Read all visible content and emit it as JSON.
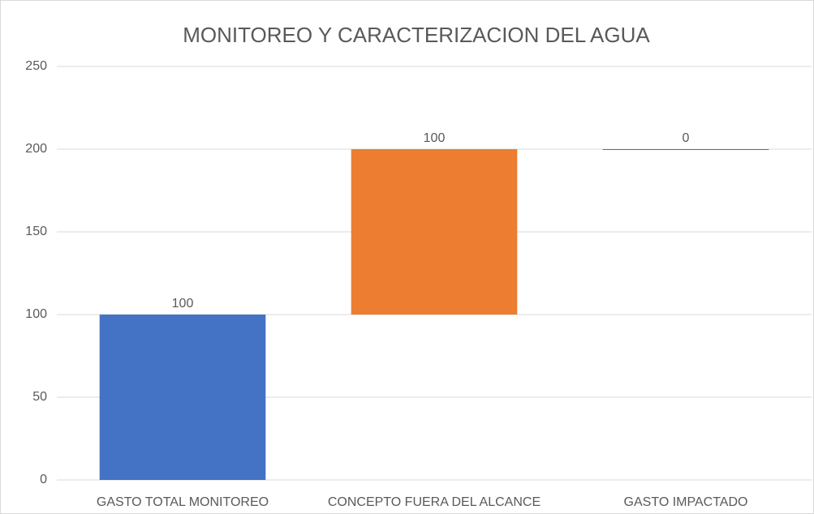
{
  "chart_data": {
    "type": "waterfall",
    "title": "MONITOREO Y CARACTERIZACION DEL AGUA",
    "categories": [
      "GASTO TOTAL MONITOREO",
      "CONCEPTO FUERA DEL ALCANCE",
      "GASTO IMPACTADO"
    ],
    "values": [
      100,
      100,
      0
    ],
    "colors": [
      "#4472c4",
      "#ed7d31",
      "#4472c4"
    ],
    "ylim": [
      0,
      250
    ],
    "yticks": [
      0,
      50,
      100,
      150,
      200,
      250
    ],
    "grid": true
  }
}
